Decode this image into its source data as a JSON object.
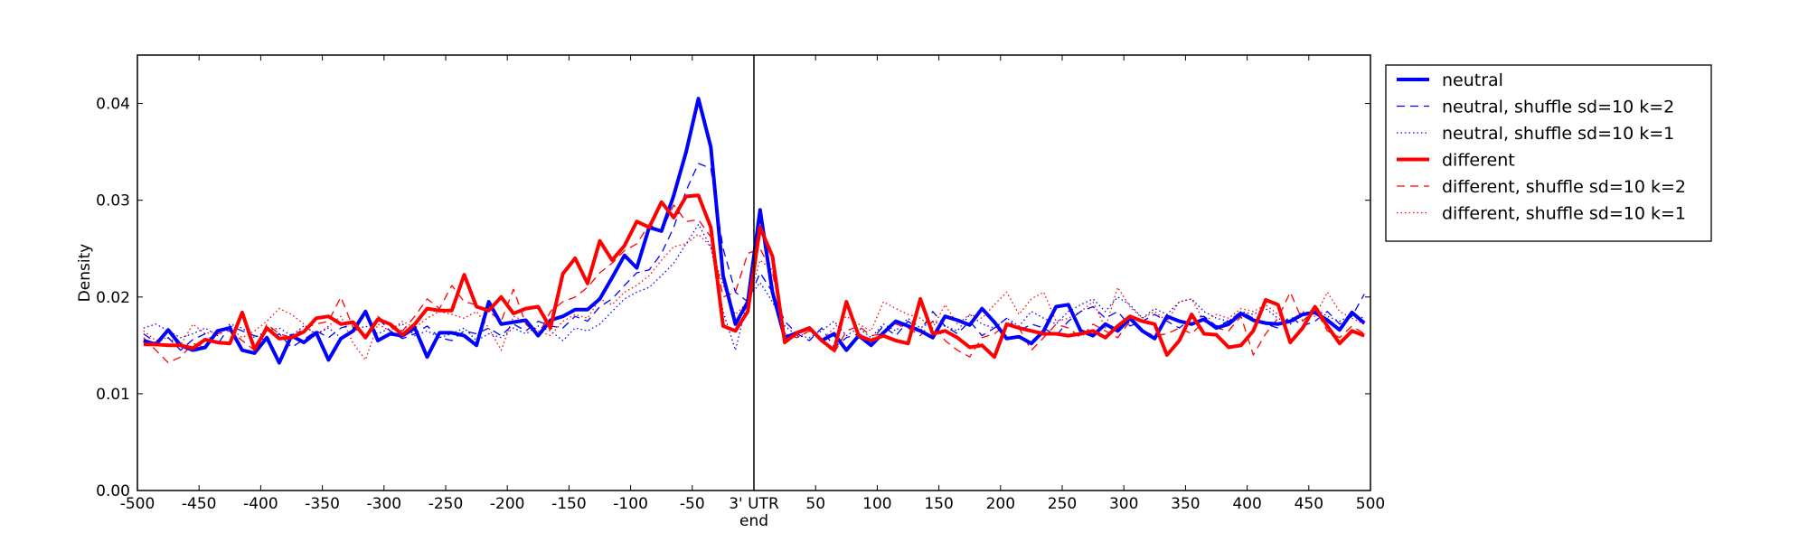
{
  "chart_data": {
    "type": "line",
    "xlabel": "",
    "ylabel": "Density",
    "xlim": [
      -500,
      500
    ],
    "ylim": [
      0,
      0.045
    ],
    "x_ticks": [
      -500,
      -450,
      -400,
      -350,
      -300,
      -250,
      -200,
      -150,
      -100,
      -50,
      0,
      50,
      100,
      150,
      200,
      250,
      300,
      350,
      400,
      450,
      500
    ],
    "x_tick_labels": [
      "-500",
      "-450",
      "-400",
      "-350",
      "-300",
      "-250",
      "-200",
      "-150",
      "-100",
      "-50",
      "3' UTR",
      "50",
      "100",
      "150",
      "200",
      "250",
      "300",
      "350",
      "400",
      "450",
      "500"
    ],
    "x_tick_sublabel": "end",
    "y_ticks": [
      0.0,
      0.01,
      0.02,
      0.03,
      0.04
    ],
    "y_tick_labels": [
      "0.00",
      "0.01",
      "0.02",
      "0.03",
      "0.04"
    ],
    "vline_x": 0,
    "grid": false,
    "legend_position": "outside-right-top",
    "x": [
      -495,
      -485,
      -475,
      -465,
      -455,
      -445,
      -435,
      -425,
      -415,
      -405,
      -395,
      -385,
      -375,
      -365,
      -355,
      -345,
      -335,
      -325,
      -315,
      -305,
      -295,
      -285,
      -275,
      -265,
      -255,
      -245,
      -235,
      -225,
      -215,
      -205,
      -195,
      -185,
      -175,
      -165,
      -155,
      -145,
      -135,
      -125,
      -115,
      -105,
      -95,
      -85,
      -75,
      -65,
      -55,
      -45,
      -35,
      -25,
      -15,
      -5,
      5,
      15,
      25,
      35,
      45,
      55,
      65,
      75,
      85,
      95,
      105,
      115,
      125,
      135,
      145,
      155,
      165,
      175,
      185,
      195,
      205,
      215,
      225,
      235,
      245,
      255,
      265,
      275,
      285,
      295,
      305,
      315,
      325,
      335,
      345,
      355,
      365,
      375,
      385,
      395,
      405,
      415,
      425,
      435,
      445,
      455,
      465,
      475,
      485,
      495
    ],
    "series": [
      {
        "name": "neutral",
        "color": "#0000ff",
        "style": "solid",
        "width": 4,
        "values": [
          0.0155,
          0.0151,
          0.0166,
          0.015,
          0.0145,
          0.0148,
          0.0165,
          0.0168,
          0.0145,
          0.0142,
          0.0158,
          0.0132,
          0.016,
          0.0153,
          0.0163,
          0.0135,
          0.0157,
          0.0165,
          0.0185,
          0.0155,
          0.0162,
          0.016,
          0.0168,
          0.0138,
          0.0163,
          0.0163,
          0.016,
          0.015,
          0.0195,
          0.0172,
          0.0174,
          0.0176,
          0.016,
          0.0176,
          0.018,
          0.0187,
          0.0187,
          0.0198,
          0.022,
          0.0243,
          0.023,
          0.0272,
          0.0268,
          0.0305,
          0.035,
          0.0405,
          0.0355,
          0.0222,
          0.0172,
          0.0195,
          0.029,
          0.0205,
          0.0158,
          0.0163,
          0.0168,
          0.0155,
          0.0162,
          0.0145,
          0.016,
          0.015,
          0.0163,
          0.0175,
          0.017,
          0.0165,
          0.0158,
          0.018,
          0.0176,
          0.0171,
          0.0188,
          0.0174,
          0.0157,
          0.0159,
          0.0152,
          0.0165,
          0.019,
          0.0192,
          0.0165,
          0.016,
          0.0172,
          0.0165,
          0.0178,
          0.0165,
          0.0157,
          0.018,
          0.0175,
          0.0172,
          0.0177,
          0.0168,
          0.0172,
          0.0183,
          0.0176,
          0.0173,
          0.0172,
          0.0175,
          0.0182,
          0.0184,
          0.0176,
          0.0166,
          0.0184,
          0.0173
        ]
      },
      {
        "name": "neutral, shuffle sd=10 k=2",
        "color": "#0000ff",
        "style": "dashed",
        "width": 1.3,
        "values": [
          0.0162,
          0.0153,
          0.0158,
          0.0145,
          0.0156,
          0.0162,
          0.0151,
          0.017,
          0.0165,
          0.016,
          0.0155,
          0.0162,
          0.0148,
          0.0156,
          0.0165,
          0.0158,
          0.0168,
          0.0172,
          0.016,
          0.0178,
          0.0165,
          0.0157,
          0.0162,
          0.017,
          0.0158,
          0.0155,
          0.0165,
          0.0162,
          0.0168,
          0.016,
          0.0172,
          0.0165,
          0.0175,
          0.017,
          0.0168,
          0.018,
          0.0175,
          0.019,
          0.0198,
          0.0212,
          0.0225,
          0.0228,
          0.0245,
          0.0272,
          0.031,
          0.0338,
          0.0333,
          0.025,
          0.0205,
          0.0195,
          0.0225,
          0.0205,
          0.0175,
          0.0162,
          0.0155,
          0.0168,
          0.0148,
          0.0158,
          0.0162,
          0.0155,
          0.017,
          0.016,
          0.0175,
          0.0165,
          0.0185,
          0.017,
          0.0162,
          0.0175,
          0.016,
          0.0168,
          0.0178,
          0.0165,
          0.0172,
          0.0168,
          0.016,
          0.0175,
          0.0185,
          0.019,
          0.0178,
          0.0185,
          0.017,
          0.0175,
          0.0182,
          0.0175,
          0.0168,
          0.0178,
          0.018,
          0.017,
          0.0175,
          0.0185,
          0.0178,
          0.0172,
          0.0168,
          0.018,
          0.017,
          0.0175,
          0.0185,
          0.0172,
          0.018,
          0.0203
        ]
      },
      {
        "name": "neutral, shuffle sd=10 k=1",
        "color": "#0000ff",
        "style": "dotted",
        "width": 1.3,
        "values": [
          0.0168,
          0.0172,
          0.0165,
          0.0158,
          0.0162,
          0.0168,
          0.016,
          0.0172,
          0.0168,
          0.0158,
          0.0165,
          0.0168,
          0.016,
          0.017,
          0.0162,
          0.0168,
          0.0158,
          0.0165,
          0.017,
          0.0162,
          0.0168,
          0.0172,
          0.016,
          0.0165,
          0.0158,
          0.0162,
          0.0168,
          0.0155,
          0.0162,
          0.0158,
          0.0168,
          0.0162,
          0.017,
          0.0165,
          0.0155,
          0.0168,
          0.0165,
          0.0172,
          0.0185,
          0.0198,
          0.0205,
          0.021,
          0.0222,
          0.0235,
          0.0255,
          0.0275,
          0.0252,
          0.0185,
          0.0145,
          0.0198,
          0.0215,
          0.0195,
          0.017,
          0.016,
          0.0158,
          0.0165,
          0.0175,
          0.016,
          0.0168,
          0.0158,
          0.0172,
          0.0165,
          0.0178,
          0.0168,
          0.0175,
          0.017,
          0.0165,
          0.0182,
          0.0172,
          0.0168,
          0.0178,
          0.017,
          0.0185,
          0.0178,
          0.0172,
          0.0185,
          0.0192,
          0.0198,
          0.0185,
          0.02,
          0.0192,
          0.0178,
          0.0188,
          0.0182,
          0.0195,
          0.0198,
          0.0185,
          0.0178,
          0.0175,
          0.0185,
          0.0182,
          0.0188,
          0.0178,
          0.0172,
          0.0182,
          0.0188,
          0.018,
          0.0175,
          0.0182,
          0.0178
        ]
      },
      {
        "name": "different",
        "color": "#ff0000",
        "style": "solid",
        "width": 4,
        "values": [
          0.0151,
          0.0151,
          0.015,
          0.015,
          0.0147,
          0.0156,
          0.0153,
          0.0152,
          0.0184,
          0.0146,
          0.0168,
          0.0157,
          0.0158,
          0.0164,
          0.0178,
          0.018,
          0.0172,
          0.0174,
          0.0158,
          0.0177,
          0.0172,
          0.0161,
          0.0172,
          0.0188,
          0.0186,
          0.0186,
          0.0223,
          0.019,
          0.0186,
          0.02,
          0.0183,
          0.0188,
          0.019,
          0.0168,
          0.0224,
          0.024,
          0.0214,
          0.0258,
          0.0238,
          0.0253,
          0.0278,
          0.0272,
          0.0298,
          0.0282,
          0.0304,
          0.0305,
          0.0272,
          0.017,
          0.0165,
          0.0185,
          0.0272,
          0.0242,
          0.0153,
          0.0163,
          0.0168,
          0.0155,
          0.0145,
          0.0195,
          0.016,
          0.0155,
          0.016,
          0.0155,
          0.0152,
          0.0198,
          0.0162,
          0.0165,
          0.0158,
          0.0148,
          0.015,
          0.0138,
          0.0172,
          0.0168,
          0.0165,
          0.0162,
          0.0162,
          0.016,
          0.0162,
          0.0165,
          0.0158,
          0.017,
          0.018,
          0.0175,
          0.0172,
          0.014,
          0.0155,
          0.0182,
          0.0162,
          0.0161,
          0.0148,
          0.015,
          0.0165,
          0.0197,
          0.0192,
          0.0153,
          0.0168,
          0.019,
          0.017,
          0.0152,
          0.0165,
          0.016
        ]
      },
      {
        "name": "different, shuffle sd=10 k=2",
        "color": "#ff0000",
        "style": "dashed",
        "width": 1.3,
        "values": [
          0.0158,
          0.0145,
          0.0132,
          0.0138,
          0.0152,
          0.0148,
          0.0162,
          0.0165,
          0.0155,
          0.0145,
          0.0172,
          0.0162,
          0.0158,
          0.0168,
          0.0172,
          0.0175,
          0.02,
          0.0168,
          0.016,
          0.018,
          0.017,
          0.0165,
          0.018,
          0.0198,
          0.0188,
          0.0212,
          0.0195,
          0.0192,
          0.0185,
          0.0175,
          0.0208,
          0.0172,
          0.016,
          0.0185,
          0.0195,
          0.02,
          0.021,
          0.0225,
          0.0235,
          0.0248,
          0.0255,
          0.0275,
          0.0268,
          0.0295,
          0.0278,
          0.028,
          0.0262,
          0.02,
          0.0205,
          0.0245,
          0.025,
          0.0225,
          0.0162,
          0.0158,
          0.0165,
          0.0155,
          0.0142,
          0.0165,
          0.017,
          0.016,
          0.0162,
          0.0172,
          0.0168,
          0.016,
          0.0175,
          0.0155,
          0.0145,
          0.0138,
          0.0158,
          0.0162,
          0.0172,
          0.0168,
          0.0145,
          0.0158,
          0.0172,
          0.0168,
          0.0158,
          0.0172,
          0.0165,
          0.0158,
          0.0175,
          0.0165,
          0.016,
          0.0162,
          0.0168,
          0.0162,
          0.0175,
          0.0168,
          0.0165,
          0.018,
          0.014,
          0.0162,
          0.0178,
          0.0205,
          0.0175,
          0.0188,
          0.0165,
          0.0158,
          0.017,
          0.0162
        ]
      },
      {
        "name": "different, shuffle sd=10 k=1",
        "color": "#ff0000",
        "style": "dotted",
        "width": 1.3,
        "values": [
          0.0165,
          0.0155,
          0.0158,
          0.015,
          0.0172,
          0.0162,
          0.0165,
          0.0168,
          0.0158,
          0.0165,
          0.0175,
          0.0188,
          0.0182,
          0.0172,
          0.016,
          0.017,
          0.018,
          0.0152,
          0.0135,
          0.0172,
          0.0165,
          0.0175,
          0.0168,
          0.0178,
          0.0185,
          0.0182,
          0.0178,
          0.0185,
          0.0168,
          0.0145,
          0.018,
          0.0175,
          0.0165,
          0.016,
          0.0175,
          0.0182,
          0.0178,
          0.0198,
          0.0192,
          0.0205,
          0.0212,
          0.0222,
          0.0238,
          0.0252,
          0.0255,
          0.0265,
          0.0252,
          0.0212,
          0.0182,
          0.0195,
          0.0238,
          0.0228,
          0.0162,
          0.0158,
          0.0165,
          0.0155,
          0.0168,
          0.018,
          0.0172,
          0.0165,
          0.0195,
          0.0188,
          0.0182,
          0.0178,
          0.0168,
          0.0192,
          0.0172,
          0.0182,
          0.0178,
          0.0192,
          0.0205,
          0.0182,
          0.0198,
          0.0205,
          0.0175,
          0.0178,
          0.0185,
          0.0195,
          0.0168,
          0.021,
          0.019,
          0.0178,
          0.0185,
          0.0175,
          0.0195,
          0.0198,
          0.0175,
          0.0182,
          0.0178,
          0.0188,
          0.0185,
          0.0192,
          0.0182,
          0.0175,
          0.0185,
          0.018,
          0.0205,
          0.0185,
          0.0178,
          0.0172
        ]
      }
    ]
  }
}
